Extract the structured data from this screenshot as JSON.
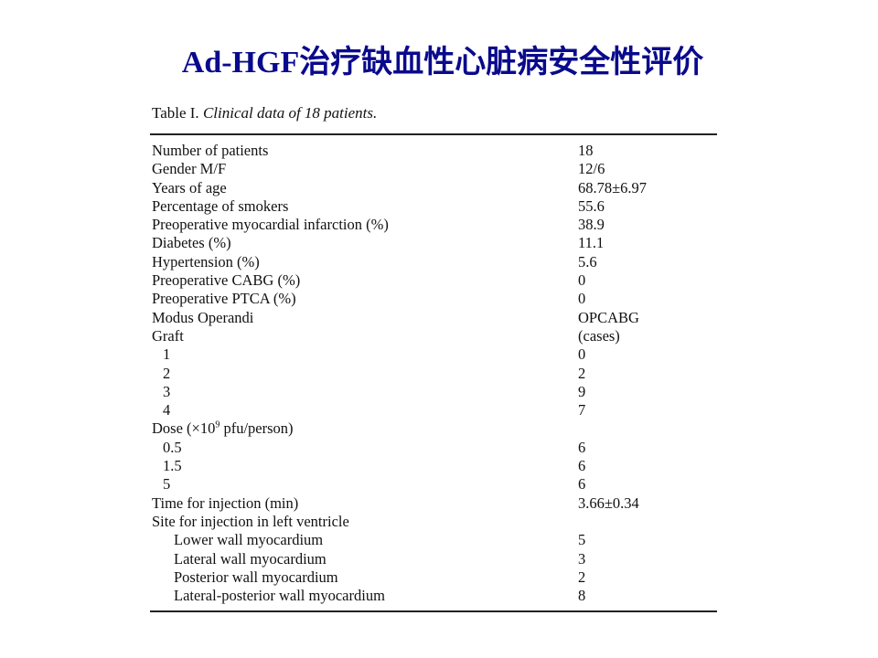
{
  "slide": {
    "title": "Ad-HGF治疗缺血性心脏病安全性评价",
    "title_color": "#0a0a8c"
  },
  "table": {
    "caption_label": "Table I.",
    "caption_text": "Clinical data of 18 patients.",
    "rows": [
      {
        "label": "Number of patients",
        "value": "18",
        "indent": 0
      },
      {
        "label": "Gender M/F",
        "value": "12/6",
        "indent": 0
      },
      {
        "label": "Years of age",
        "value": "68.78±6.97",
        "indent": 0
      },
      {
        "label": "Percentage of smokers",
        "value": "55.6",
        "indent": 0
      },
      {
        "label": "Preoperative myocardial infarction (%)",
        "value": "38.9",
        "indent": 0
      },
      {
        "label": "Diabetes (%)",
        "value": "11.1",
        "indent": 0
      },
      {
        "label": "Hypertension (%)",
        "value": "5.6",
        "indent": 0
      },
      {
        "label": "Preoperative CABG (%)",
        "value": "0",
        "indent": 0
      },
      {
        "label": "Preoperative PTCA (%)",
        "value": "0",
        "indent": 0
      },
      {
        "label": "Modus Operandi",
        "value": "OPCABG",
        "indent": 0
      },
      {
        "label": "Graft",
        "value": "(cases)",
        "indent": 0
      },
      {
        "label": "1",
        "value": "0",
        "indent": 1
      },
      {
        "label": "2",
        "value": "2",
        "indent": 1
      },
      {
        "label": "3",
        "value": "9",
        "indent": 1
      },
      {
        "label": "4",
        "value": "7",
        "indent": 1
      },
      {
        "label": "Dose (×10",
        "sup": "9",
        "label_after": " pfu/person)",
        "value": "",
        "indent": 0
      },
      {
        "label": "0.5",
        "value": "6",
        "indent": 1
      },
      {
        "label": "1.5",
        "value": "6",
        "indent": 1
      },
      {
        "label": "5",
        "value": "6",
        "indent": 1
      },
      {
        "label": "Time for injection (min)",
        "value": "3.66±0.34",
        "indent": 0
      },
      {
        "label": "Site for injection in left ventricle",
        "value": "",
        "indent": 0
      },
      {
        "label": "Lower wall myocardium",
        "value": "5",
        "indent": 2
      },
      {
        "label": "Lateral wall myocardium",
        "value": "3",
        "indent": 2
      },
      {
        "label": "Posterior wall myocardium",
        "value": "2",
        "indent": 2
      },
      {
        "label": "Lateral-posterior wall myocardium",
        "value": "8",
        "indent": 2
      }
    ]
  }
}
